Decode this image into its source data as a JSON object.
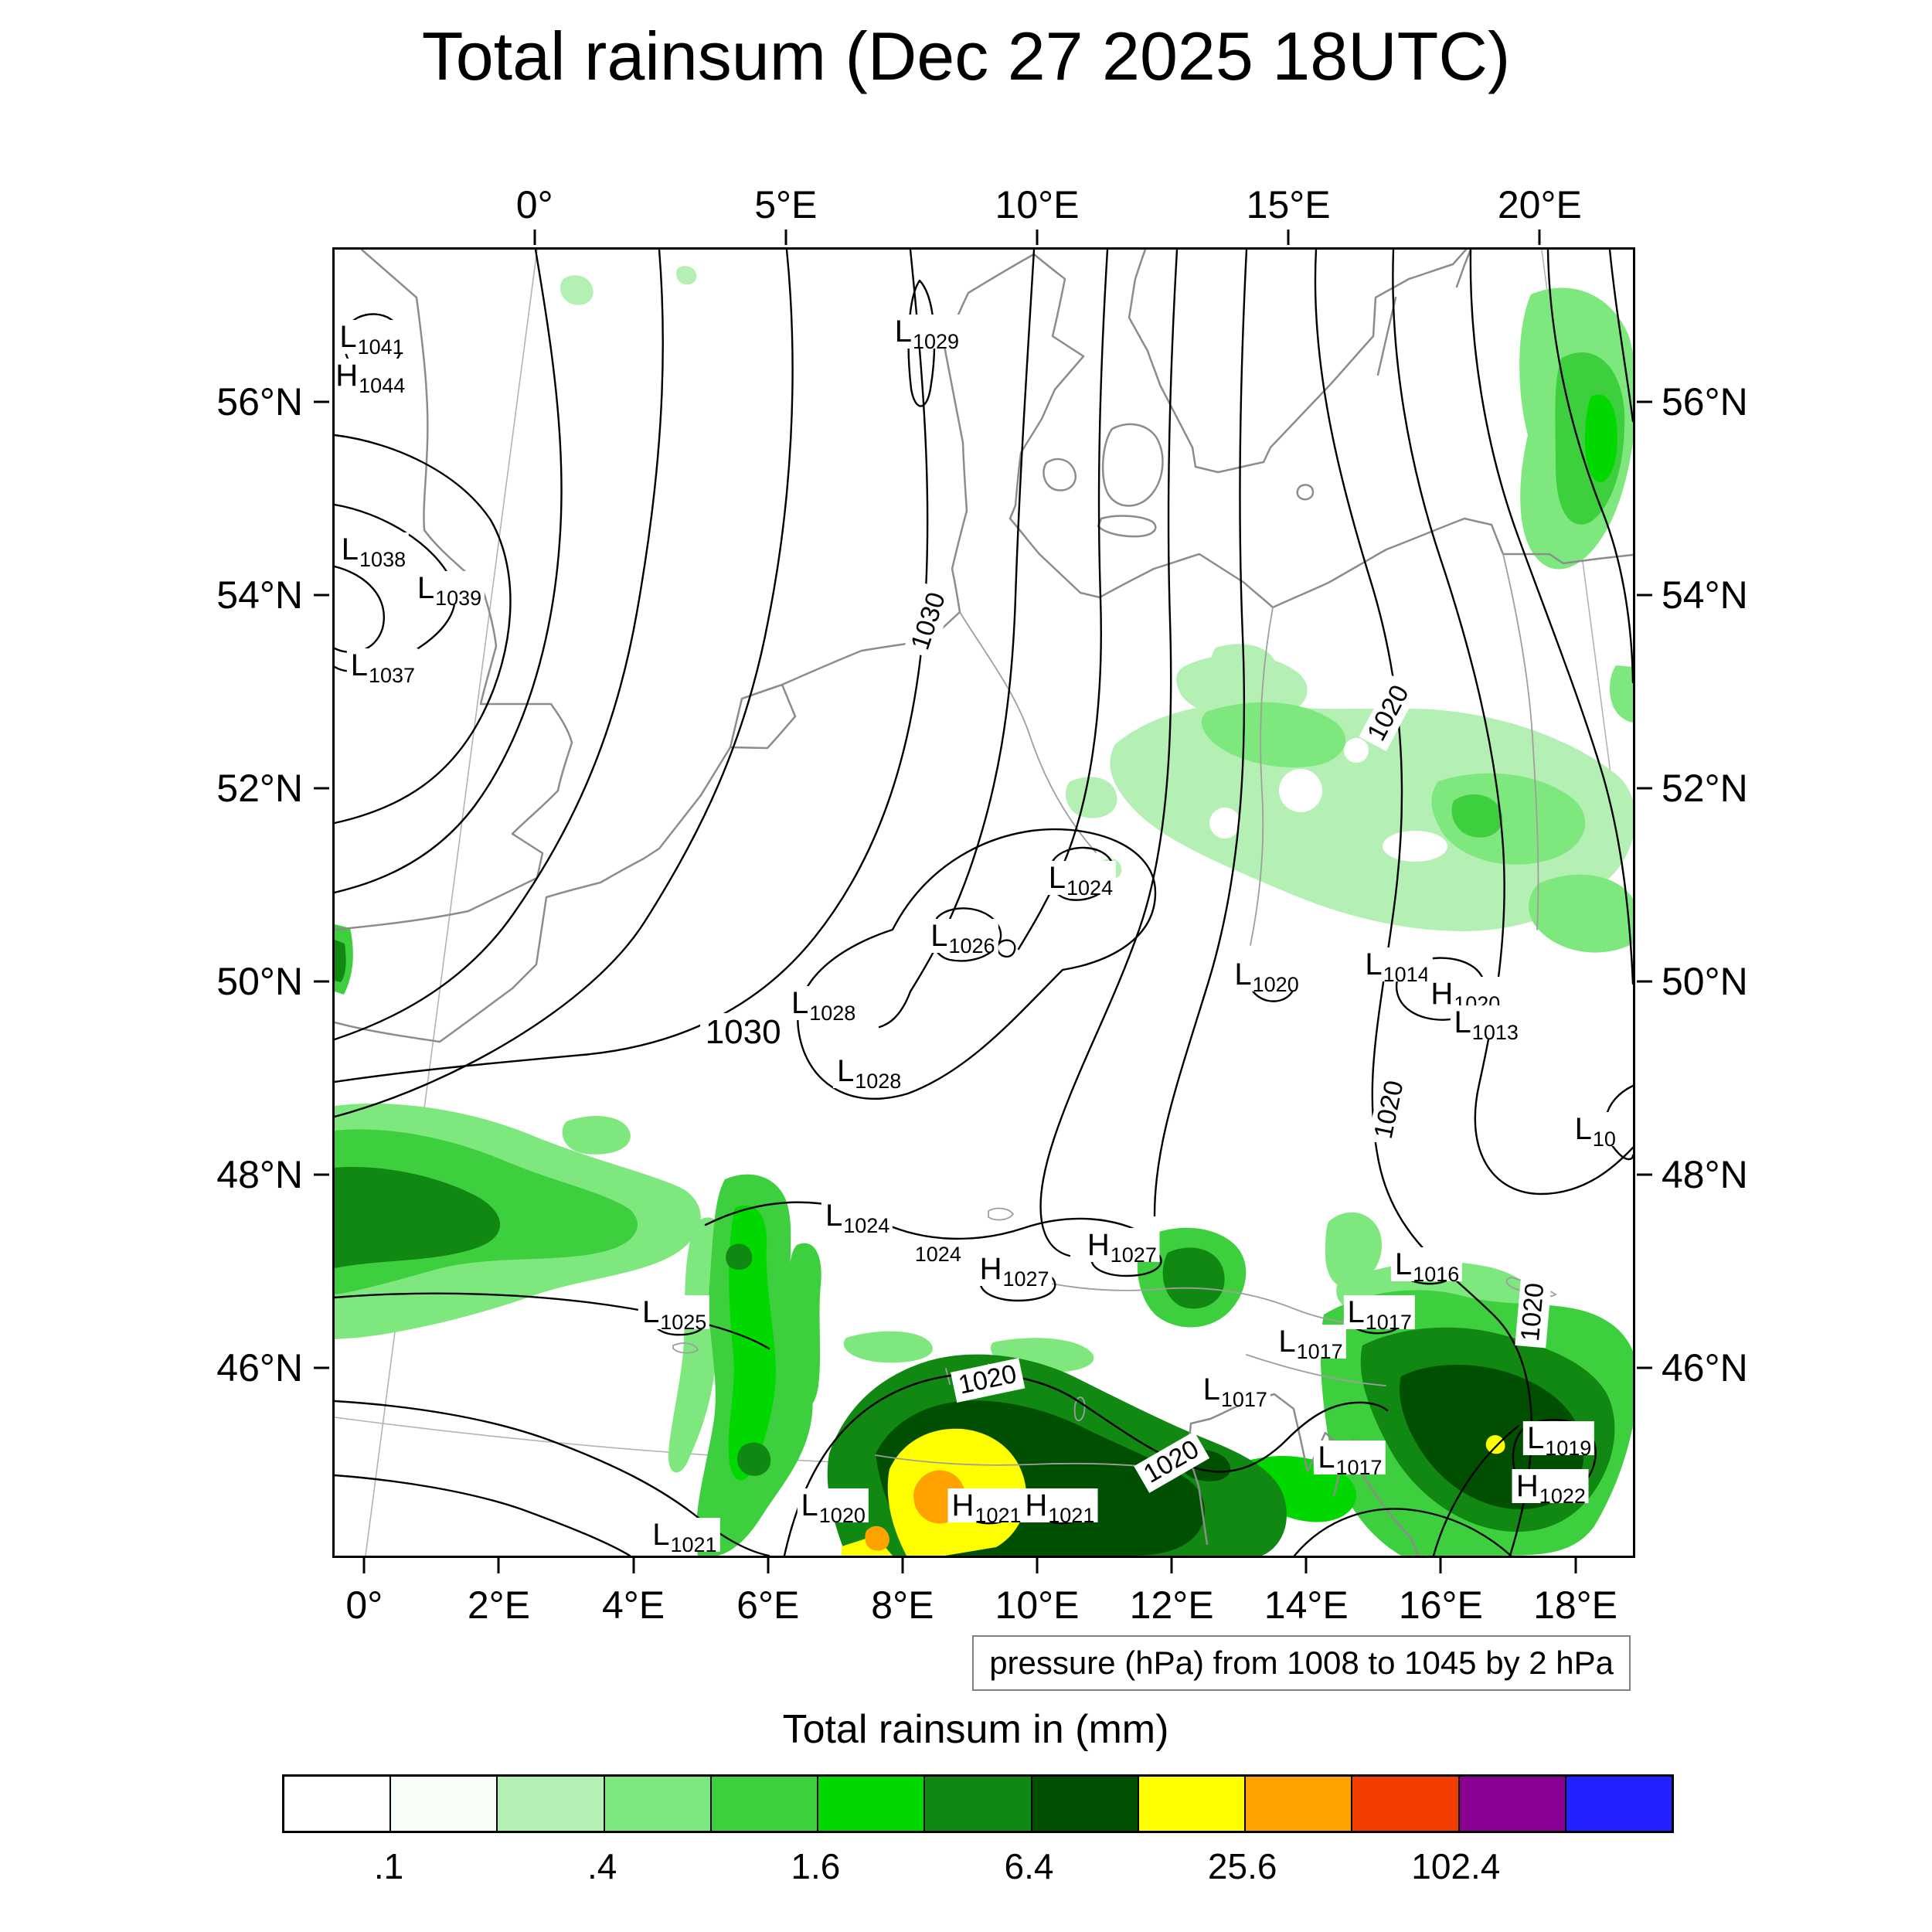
{
  "title": "Total rainsum (Dec 27 2025 18UTC)",
  "caption": "pressure (hPa) from 1008 to 1045 by 2 hPa",
  "colorbar": {
    "title": "Total rainsum in (mm)",
    "unit": "mm",
    "n_cells": 13,
    "colors": [
      "#ffffff",
      "#f7fdf7",
      "#b4f0b4",
      "#7ee87e",
      "#3ecf3e",
      "#00d800",
      "#118811",
      "#014f01",
      "#ffff00",
      "#ffa200",
      "#f23c00",
      "#8a0094",
      "#2222ff"
    ],
    "tick_labels": [
      ".1",
      ".4",
      "1.6",
      "6.4",
      "25.6",
      "102.4"
    ],
    "tick_cell_boundaries": [
      1,
      3,
      5,
      7,
      9,
      11
    ]
  },
  "axes": {
    "top": [
      {
        "label": "0°",
        "lon": 0
      },
      {
        "label": "5°E",
        "lon": 5
      },
      {
        "label": "10°E",
        "lon": 10
      },
      {
        "label": "15°E",
        "lon": 15
      },
      {
        "label": "20°E",
        "lon": 20
      }
    ],
    "bottom": [
      {
        "label": "0°",
        "lon": 0
      },
      {
        "label": "2°E",
        "lon": 2
      },
      {
        "label": "4°E",
        "lon": 4
      },
      {
        "label": "6°E",
        "lon": 6
      },
      {
        "label": "8°E",
        "lon": 8
      },
      {
        "label": "10°E",
        "lon": 10
      },
      {
        "label": "12°E",
        "lon": 12
      },
      {
        "label": "14°E",
        "lon": 14
      },
      {
        "label": "16°E",
        "lon": 16
      },
      {
        "label": "18°E",
        "lon": 18
      }
    ],
    "left": [
      {
        "label": "56°N",
        "lat": 56
      },
      {
        "label": "54°N",
        "lat": 54
      },
      {
        "label": "52°N",
        "lat": 52
      },
      {
        "label": "50°N",
        "lat": 50
      },
      {
        "label": "48°N",
        "lat": 48
      },
      {
        "label": "46°N",
        "lat": 46
      }
    ],
    "right": [
      {
        "label": "56°N",
        "lat": 56
      },
      {
        "label": "54°N",
        "lat": 54
      },
      {
        "label": "52°N",
        "lat": 52
      },
      {
        "label": "50°N",
        "lat": 50
      },
      {
        "label": "48°N",
        "lat": 48
      },
      {
        "label": "46°N",
        "lat": 46
      }
    ]
  },
  "chart_data": {
    "type": "heatmap",
    "title": "Total rainsum (Dec 27 2025 18UTC)",
    "valid_time": "Dec 27 2025 18UTC",
    "variable": "Total rainsum (mm)",
    "overlay": "mean sea level pressure contours (hPa) from 1008 to 1045 by 2 hPa",
    "pressure_range_hPa": [
      1008,
      1045
    ],
    "pressure_contour_interval_hPa": 2,
    "lon_ticks_top_deg_e": [
      0,
      5,
      10,
      15,
      20
    ],
    "lon_ticks_bottom_deg_e": [
      0,
      2,
      4,
      6,
      8,
      10,
      12,
      14,
      16,
      18
    ],
    "lat_ticks_deg_n": [
      46,
      48,
      50,
      52,
      54,
      56
    ],
    "rain_levels_mm": [
      0.1,
      0.2,
      0.4,
      0.8,
      1.6,
      3.2,
      6.4,
      12.8,
      25.6,
      51.2,
      102.4,
      204.8
    ],
    "labeled_levels_mm": [
      0.1,
      0.4,
      1.6,
      6.4,
      25.6,
      102.4
    ],
    "rain_regions": [
      {
        "region": "southern Sweden / Baltic coast (top right)",
        "range_mm": [
          0.2,
          3.2
        ]
      },
      {
        "region": "eastern Poland (broad light shading)",
        "range_mm": [
          0.2,
          1.6
        ]
      },
      {
        "region": "central France at left edge",
        "range_mm": [
          0.4,
          6.4
        ]
      },
      {
        "region": "Vosges-Jura-western Alps streak (5-6°E)",
        "range_mm": [
          0.8,
          6.4
        ]
      },
      {
        "region": "southern Alps / Po valley",
        "range_mm": [
          3.2,
          51.2
        ],
        "note": "yellow-orange core 12.8-51.2 mm near 8°E 45°N"
      },
      {
        "region": "eastern Alps / northwest Balkans",
        "range_mm": [
          1.6,
          25.6
        ]
      }
    ],
    "pressure_centers": [
      {
        "type": "L",
        "value": "1041",
        "lon": -3.0,
        "lat": 56.7
      },
      {
        "type": "H",
        "value": "1044",
        "lon": -2.9,
        "lat": 56.3
      },
      {
        "type": "L",
        "value": "1038",
        "lon": -2.3,
        "lat": 54.5
      },
      {
        "type": "L",
        "value": "1039",
        "lon": -0.8,
        "lat": 54.1
      },
      {
        "type": "L",
        "value": "1037",
        "lon": -1.8,
        "lat": 53.3
      },
      {
        "type": "L",
        "value": "1029",
        "lon": 7.8,
        "lat": 56.75
      },
      {
        "type": "L",
        "value": "1024",
        "lon": 10.7,
        "lat": 51.1
      },
      {
        "type": "L",
        "value": "1026",
        "lon": 8.7,
        "lat": 50.5
      },
      {
        "type": "L",
        "value": "1028",
        "lon": 6.4,
        "lat": 49.8
      },
      {
        "type": "L",
        "value": "1028",
        "lon": 7.2,
        "lat": 49.1
      },
      {
        "type": "L",
        "value": "1020",
        "lon": 13.8,
        "lat": 50.1
      },
      {
        "type": "L",
        "value": "1014",
        "lon": 16.0,
        "lat": 50.2
      },
      {
        "type": "H",
        "value": "1020",
        "lon": 17.1,
        "lat": 49.9
      },
      {
        "type": "L",
        "value": "1013",
        "lon": 17.4,
        "lat": 49.6
      },
      {
        "type": "L",
        "value": "10",
        "lon": 19.0,
        "lat": 48.5
      },
      {
        "type": "L",
        "value": "1024",
        "lon": 7.1,
        "lat": 47.6
      },
      {
        "type": "H",
        "value": "1027",
        "lon": 9.6,
        "lat": 47.05
      },
      {
        "type": "H",
        "value": "1027",
        "lon": 11.3,
        "lat": 47.3
      },
      {
        "type": "L",
        "value": "1025",
        "lon": 4.3,
        "lat": 46.6
      },
      {
        "type": "L",
        "value": "1016",
        "lon": 16.1,
        "lat": 47.1
      },
      {
        "type": "L",
        "value": "1017",
        "lon": 15.3,
        "lat": 46.6
      },
      {
        "type": "L",
        "value": "1017",
        "lon": 14.2,
        "lat": 46.3
      },
      {
        "type": "L",
        "value": "1017",
        "lon": 13.0,
        "lat": 45.8
      },
      {
        "type": "L",
        "value": "1017",
        "lon": 14.7,
        "lat": 45.1
      },
      {
        "type": "L",
        "value": "1019",
        "lon": 17.9,
        "lat": 45.3
      },
      {
        "type": "H",
        "value": "1022",
        "lon": 17.7,
        "lat": 44.8
      },
      {
        "type": "L",
        "value": "1020",
        "lon": 6.9,
        "lat": 44.6
      },
      {
        "type": "L",
        "value": "1021",
        "lon": 4.7,
        "lat": 44.3
      },
      {
        "type": "H",
        "value": "1021",
        "lon": 9.2,
        "lat": 44.6
      },
      {
        "type": "H",
        "value": "1021",
        "lon": 10.3,
        "lat": 44.6
      }
    ],
    "contour_labels": [
      {
        "text": "1030",
        "lon": 8.0,
        "lat": 53.75,
        "rot": -72
      },
      {
        "text": "1020",
        "lon": 16.2,
        "lat": 52.8,
        "rot": -62
      },
      {
        "text": "1030",
        "lon": 5.1,
        "lat": 49.5,
        "rot": 0,
        "big": true
      },
      {
        "text": "1020",
        "lon": 15.7,
        "lat": 48.7,
        "rot": -78
      },
      {
        "text": "1020",
        "lon": 17.7,
        "lat": 46.6,
        "rot": -85
      },
      {
        "text": "1020",
        "lon": 9.2,
        "lat": 45.9,
        "rot": -12
      },
      {
        "text": "1020",
        "lon": 12.0,
        "lat": 45.05,
        "rot": -30
      },
      {
        "text": "1024",
        "lon": 8.4,
        "lat": 47.2,
        "rot": 0,
        "small": true
      }
    ]
  }
}
